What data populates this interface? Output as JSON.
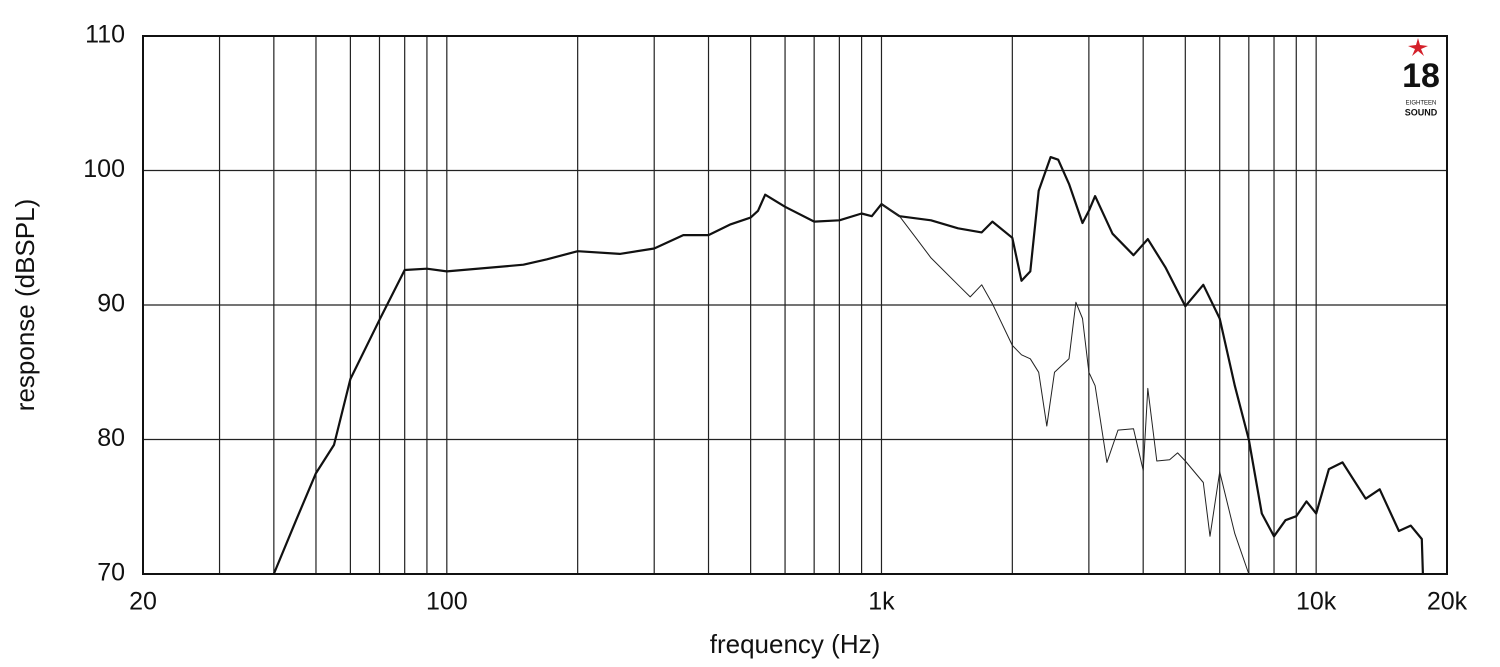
{
  "chart_data": {
    "type": "line",
    "xlabel": "frequency (Hz)",
    "ylabel": "response (dBSPL)",
    "xscale": "log",
    "grid": true,
    "xlim": [
      20,
      20000
    ],
    "ylim": [
      70,
      110
    ],
    "xticks": [
      20,
      100,
      {
        "value": 1000,
        "label": "1k"
      },
      {
        "value": 10000,
        "label": "10k"
      },
      {
        "value": 20000,
        "label": "20k"
      }
    ],
    "xminor": [
      30,
      40,
      50,
      60,
      70,
      80,
      90,
      200,
      300,
      400,
      500,
      600,
      700,
      800,
      900,
      2000,
      3000,
      4000,
      5000,
      6000,
      7000,
      8000,
      9000
    ],
    "yticks": [
      70,
      80,
      90,
      100,
      110
    ],
    "logo": {
      "number": "18",
      "line1": "EIGHTEEN",
      "line2": "SOUND",
      "color": "#d4202a"
    },
    "series": [
      {
        "color": "#111111",
        "width": 2.2,
        "x": [
          40,
          45,
          50,
          55,
          60,
          70,
          80,
          90,
          100,
          150,
          170,
          200,
          250,
          300,
          350,
          400,
          450,
          500,
          520,
          540,
          600,
          700,
          800,
          900,
          950,
          1000,
          1100,
          1300,
          1500,
          1700,
          1800,
          2000,
          2100,
          2200,
          2300,
          2450,
          2550,
          2700,
          2900,
          3000,
          3100,
          3400,
          3800,
          4100,
          4500,
          5000,
          5500,
          6000,
          6500,
          7000,
          7500,
          8000,
          8500,
          9000,
          9500,
          10000,
          10700,
          11500,
          13000,
          14000,
          15500,
          16500,
          17500,
          17600
        ],
        "values": [
          70,
          74.0,
          77.5,
          79.6,
          84.5,
          88.9,
          92.6,
          92.7,
          92.5,
          93.0,
          93.4,
          94.0,
          93.8,
          94.2,
          95.2,
          95.2,
          96.0,
          96.5,
          97.0,
          98.2,
          97.3,
          96.2,
          96.3,
          96.8,
          96.6,
          97.5,
          96.6,
          96.3,
          95.7,
          95.4,
          96.2,
          95.0,
          91.8,
          92.5,
          98.5,
          101.0,
          100.8,
          99.0,
          96.1,
          97.0,
          98.1,
          95.3,
          93.7,
          94.9,
          92.8,
          89.9,
          91.5,
          89.0,
          84.0,
          80.0,
          74.5,
          72.8,
          74.0,
          74.3,
          75.4,
          74.5,
          77.8,
          78.3,
          75.6,
          76.3,
          73.2,
          73.6,
          72.6,
          70
        ]
      },
      {
        "color": "#222222",
        "width": 1,
        "x": [
          1000,
          1100,
          1200,
          1300,
          1500,
          1600,
          1700,
          1800,
          2000,
          2100,
          2200,
          2300,
          2400,
          2500,
          2700,
          2800,
          2900,
          3000,
          3100,
          3300,
          3500,
          3800,
          4000,
          4100,
          4300,
          4600,
          4800,
          5000,
          5500,
          5700,
          6000,
          6500,
          7000
        ],
        "values": [
          97.5,
          96.6,
          95.0,
          93.5,
          91.5,
          90.6,
          91.5,
          90.1,
          87.0,
          86.3,
          86.0,
          85.0,
          81.0,
          85.0,
          86.0,
          90.2,
          89.0,
          85.0,
          84.0,
          78.3,
          80.7,
          80.8,
          77.7,
          83.8,
          78.4,
          78.5,
          79.0,
          78.4,
          76.8,
          72.8,
          77.6,
          73.0,
          70
        ]
      }
    ]
  }
}
